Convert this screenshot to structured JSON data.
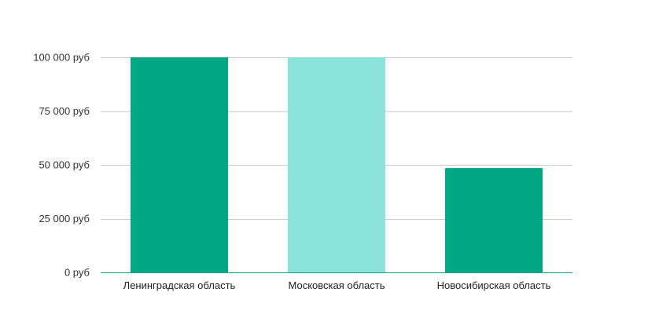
{
  "chart_data": {
    "type": "bar",
    "categories": [
      "Ленинградская область",
      "Московская область",
      "Новосибирская область"
    ],
    "values": [
      100000,
      100000,
      48500
    ],
    "bar_colors": [
      "#00a984",
      "#8ce3da",
      "#00a984"
    ],
    "axis_color": "#00a984",
    "grid_color": "#cccccc",
    "ylim": [
      0,
      100000
    ],
    "yticks": [
      0,
      25000,
      50000,
      75000,
      100000
    ],
    "ytick_labels": [
      "0 руб",
      "25 000 руб",
      "50 000 руб",
      "75 000 руб",
      "100 000 руб"
    ],
    "grid": true,
    "title": "",
    "xlabel": "",
    "ylabel": ""
  }
}
